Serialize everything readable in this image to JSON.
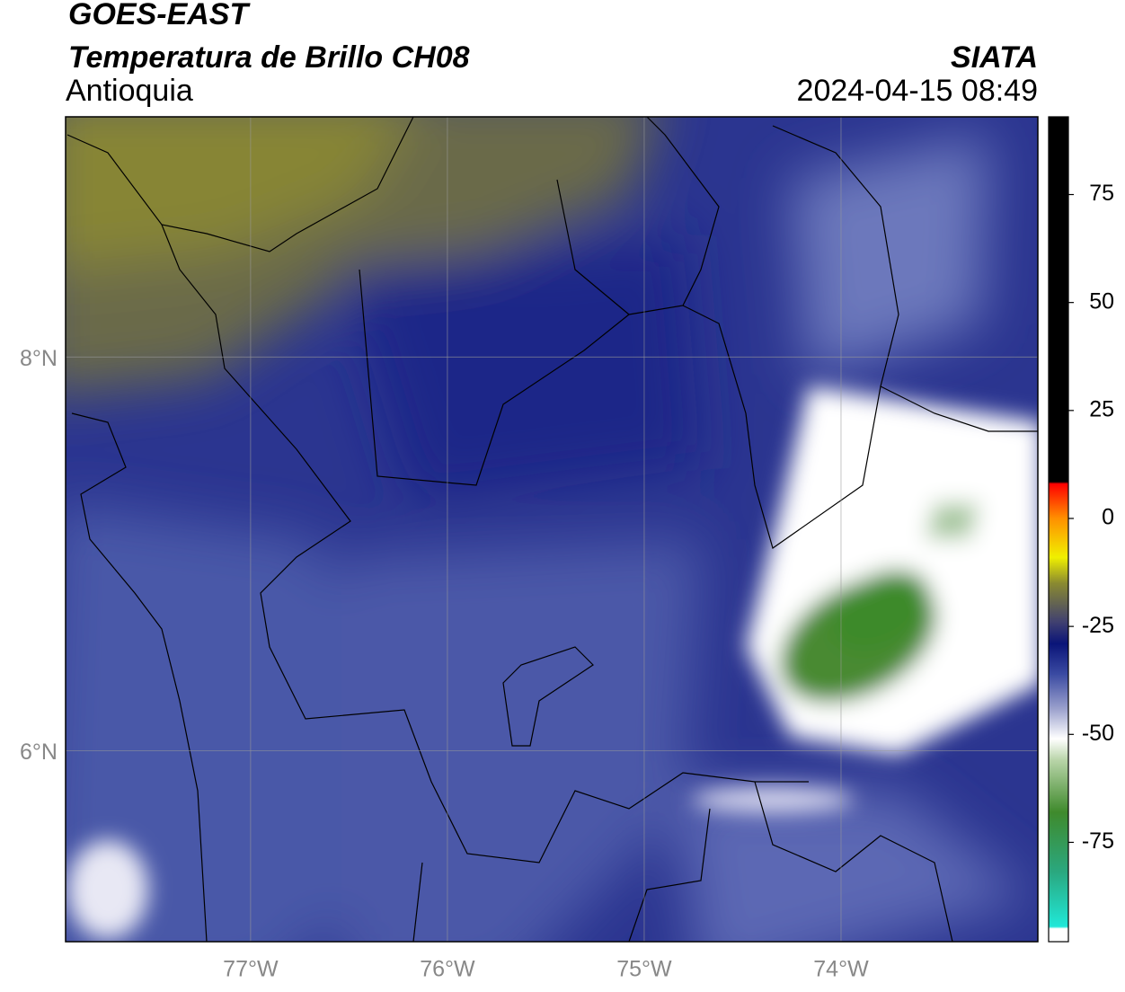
{
  "header": {
    "title": "GOES-EAST",
    "subtitle": "Temperatura de Brillo CH08",
    "region": "Antioquia",
    "source": "SIATA",
    "datetime": "2024-04-15 08:49"
  },
  "map": {
    "xlim": [
      -77.94,
      -73.0
    ],
    "ylim": [
      5.03,
      9.22
    ],
    "xticks": [
      {
        "value": -77,
        "label": "77°W"
      },
      {
        "value": -76,
        "label": "76°W"
      },
      {
        "value": -75,
        "label": "75°W"
      },
      {
        "value": -74,
        "label": "74°W"
      }
    ],
    "yticks": [
      {
        "value": 8,
        "label": "8°N"
      },
      {
        "value": 6,
        "label": "6°N"
      }
    ],
    "grid": true
  },
  "colorbar": {
    "lim": [
      -98,
      93
    ],
    "ticks": [
      75,
      50,
      25,
      0,
      -25,
      -50,
      -75
    ],
    "stops": [
      {
        "value": -98,
        "color": "#ffffff"
      },
      {
        "value": -95,
        "color": "#ffffff"
      },
      {
        "value": -94.5,
        "color": "#20e8d8"
      },
      {
        "value": -82,
        "color": "#2aa880"
      },
      {
        "value": -68,
        "color": "#3f8a2c"
      },
      {
        "value": -56,
        "color": "#b8d4a8"
      },
      {
        "value": -51,
        "color": "#ffffff"
      },
      {
        "value": -44,
        "color": "#9aa0cc"
      },
      {
        "value": -36,
        "color": "#3a4aa2"
      },
      {
        "value": -29,
        "color": "#0a1478"
      },
      {
        "value": -24,
        "color": "#404070"
      },
      {
        "value": -15,
        "color": "#8a8a30"
      },
      {
        "value": -9,
        "color": "#f0f000"
      },
      {
        "value": 0,
        "color": "#ff9000"
      },
      {
        "value": 8,
        "color": "#ff0000"
      },
      {
        "value": 8.5,
        "color": "#000000"
      },
      {
        "value": 93,
        "color": "#000000"
      }
    ]
  }
}
